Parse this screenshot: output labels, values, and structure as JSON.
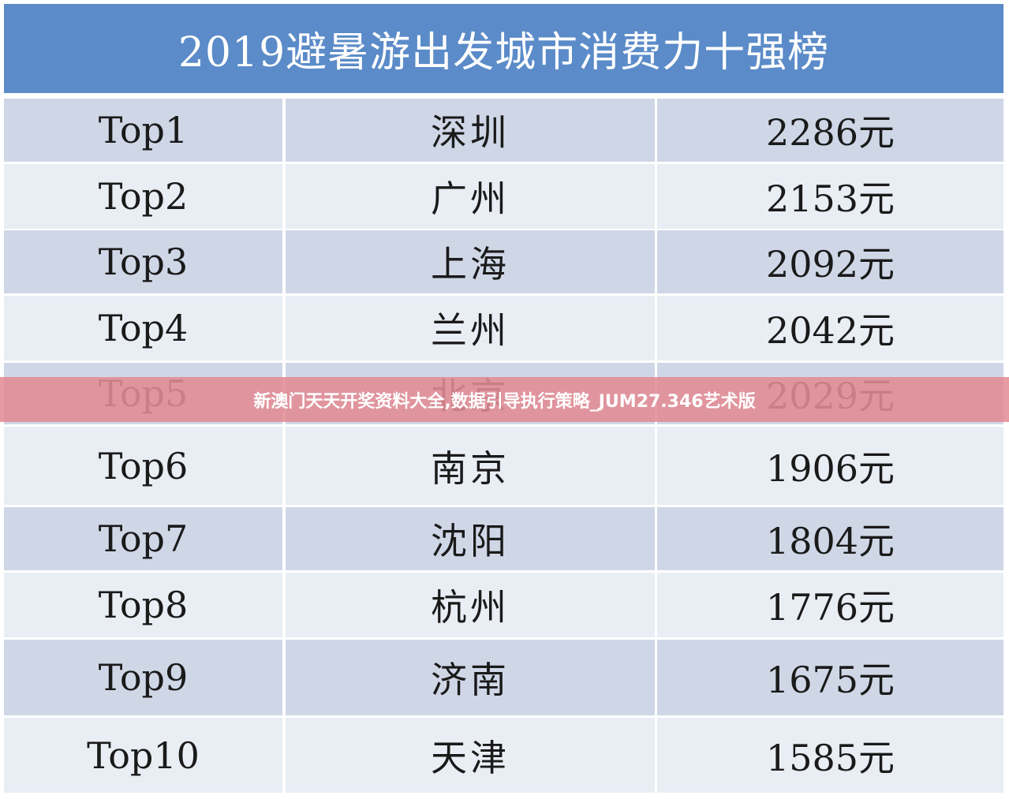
{
  "table": {
    "title": "2019避暑游出发城市消费力十强榜",
    "rows": [
      [
        "Top1",
        "深圳",
        "2286元"
      ],
      [
        "Top2",
        "广州",
        "2153元"
      ],
      [
        "Top3",
        "上海",
        "2092元"
      ],
      [
        "Top4",
        "兰州",
        "2042元"
      ],
      [
        "Top5",
        "北京",
        "2029元"
      ],
      [
        "Top6",
        "南京",
        "1906元"
      ],
      [
        "Top7",
        "沈阳",
        "1804元"
      ],
      [
        "Top8",
        "杭州",
        "1776元"
      ],
      [
        "Top9",
        "济南",
        "1675元"
      ],
      [
        "Top10",
        "天津",
        "1585元"
      ]
    ]
  },
  "banner": "新澳门天天开奖资料大全,数据引导执行策略_JUM27.346艺术版"
}
